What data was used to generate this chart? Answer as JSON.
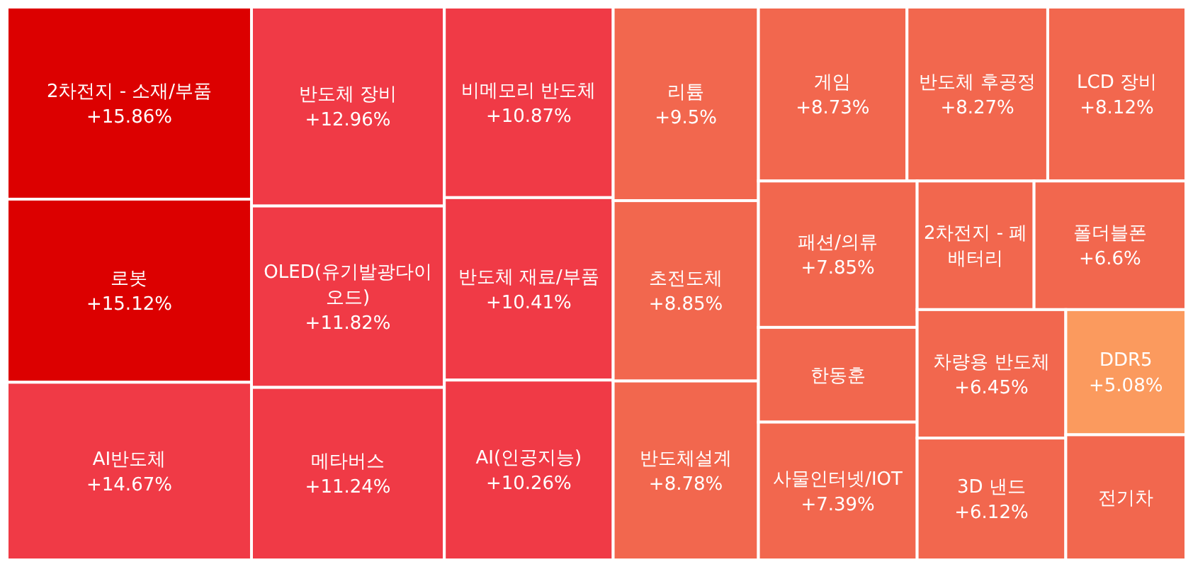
{
  "chart_data": {
    "type": "other",
    "categories": [
      "2차전지 - 소재/부품",
      "로봇",
      "AI반도체",
      "반도체 장비",
      "OLED(유기발광다이오드)",
      "메타버스",
      "비메모리 반도체",
      "반도체 재료/부품",
      "AI(인공지능)",
      "리튬",
      "초전도체",
      "반도체설계",
      "게임",
      "반도체 후공정",
      "LCD 장비",
      "패션/의류",
      "한동훈",
      "사물인터넷/IOT",
      "2차전지 - 폐배터리",
      "폴더블폰",
      "차량용 반도체",
      "3D 낸드",
      "DDR5",
      "전기차"
    ],
    "values": [
      15.86,
      15.12,
      14.67,
      12.96,
      11.82,
      11.24,
      10.87,
      10.41,
      10.26,
      9.5,
      8.85,
      8.78,
      8.73,
      8.27,
      8.12,
      7.85,
      null,
      7.39,
      null,
      6.6,
      6.45,
      6.12,
      5.08,
      null
    ],
    "value_labels": [
      "+15.86%",
      "+15.12%",
      "+14.67%",
      "+12.96%",
      "+11.82%",
      "+11.24%",
      "+10.87%",
      "+10.41%",
      "+10.26%",
      "+9.5%",
      "+8.85%",
      "+8.78%",
      "+8.73%",
      "+8.27%",
      "+8.12%",
      "+7.85%",
      null,
      "+7.39%",
      null,
      "+6.6%",
      "+6.45%",
      "+6.12%",
      "+5.08%",
      null
    ],
    "colors": [
      "#dc0000",
      "#dc0000",
      "#f03a46",
      "#f03a46",
      "#f03a46",
      "#f03a46",
      "#f03a46",
      "#f03a46",
      "#f03a46",
      "#f2674e",
      "#f2674e",
      "#f2674e",
      "#f2674e",
      "#f2674e",
      "#f2674e",
      "#f2674e",
      "#f2674e",
      "#f2674e",
      "#f2674e",
      "#f2674e",
      "#f2674e",
      "#f2674e",
      "#fb9a5e",
      "#f2674e"
    ]
  }
}
